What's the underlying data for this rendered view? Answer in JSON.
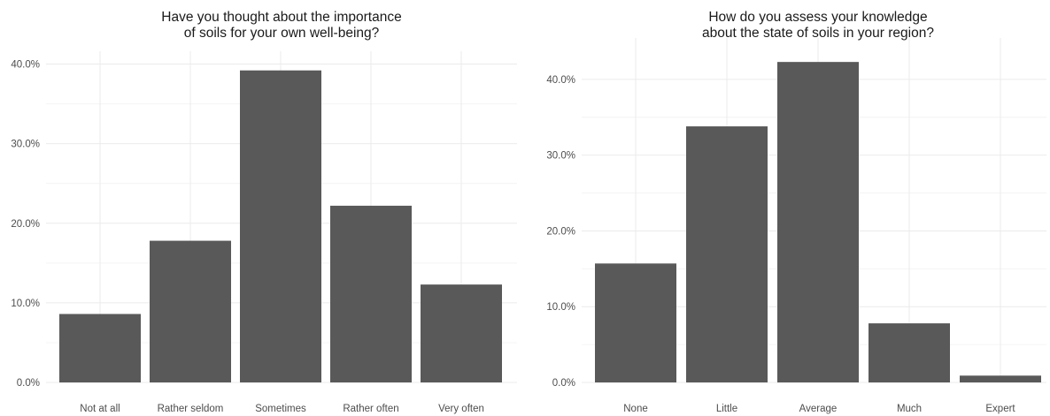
{
  "chart_data": [
    {
      "type": "bar",
      "title_lines": [
        "Have you thought about the importance",
        "of soils for your own well-being?"
      ],
      "xlabel": "",
      "ylabel": "",
      "ylim": [
        0,
        40.5
      ],
      "y_ticks": [
        "0.0%",
        "10.0%",
        "20.0%",
        "30.0%",
        "40.0%"
      ],
      "y_tick_values": [
        0,
        10,
        20,
        30,
        40
      ],
      "grid": true,
      "categories": [
        "Not at all",
        "Rather seldom",
        "Sometimes",
        "Rather often",
        "Very often"
      ],
      "values": [
        8.6,
        17.8,
        39.2,
        22.2,
        12.3
      ],
      "color": "#595959"
    },
    {
      "type": "bar",
      "title_lines": [
        "How do you assess your knowledge",
        "about the state of soils in your region?"
      ],
      "xlabel": "",
      "ylabel": "",
      "ylim": [
        0,
        44.3
      ],
      "y_ticks": [
        "0.0%",
        "10.0%",
        "20.0%",
        "30.0%",
        "40.0%"
      ],
      "y_tick_values": [
        0,
        10,
        20,
        30,
        40
      ],
      "grid": true,
      "categories": [
        "None",
        "Little",
        "Average",
        "Much",
        "Expert"
      ],
      "values": [
        15.7,
        33.8,
        42.3,
        7.8,
        0.9
      ],
      "color": "#595959"
    }
  ]
}
